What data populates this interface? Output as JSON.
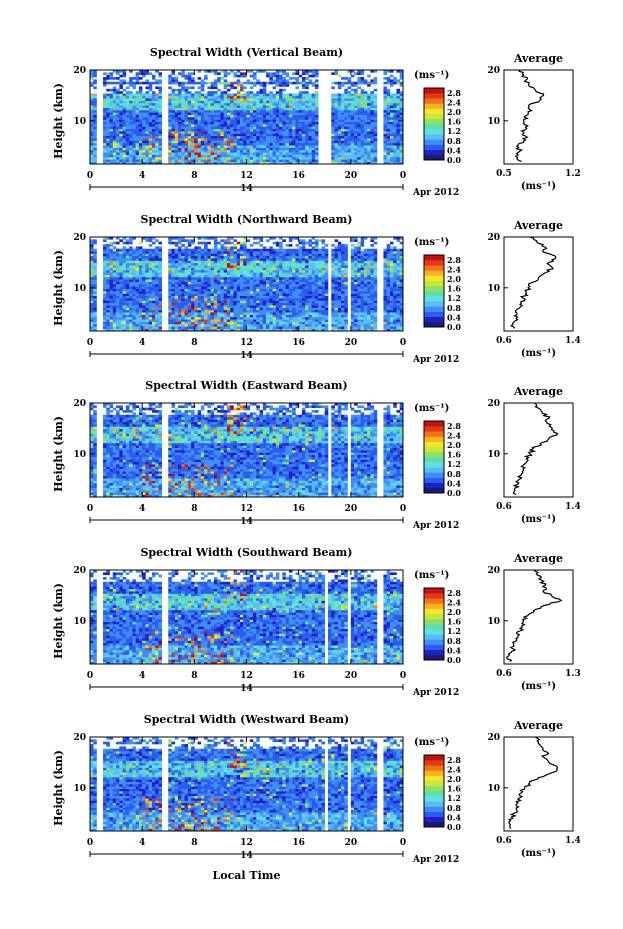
{
  "figure": {
    "xlabel": "Local Time",
    "date_label": "Apr 2012",
    "day_label": "14",
    "ylabel": "Height (km)",
    "colorbar_unit": "(ms⁻¹)",
    "profile_xlabel": "(ms⁻¹)",
    "profile_title": "Average"
  },
  "chart_data": [
    {
      "type": "heatmap",
      "title": "Spectral Width (Vertical Beam)",
      "x_ticks": [
        "0",
        "4",
        "8",
        "12",
        "16",
        "20",
        "0"
      ],
      "y_ticks": [
        "10",
        "20"
      ],
      "xlim": [
        0,
        24
      ],
      "ylim": [
        1.5,
        20
      ],
      "colorbar_ticks": [
        "0.0",
        "0.4",
        "0.8",
        "1.2",
        "1.6",
        "2.0",
        "2.4",
        "2.8"
      ],
      "colorbar_range": [
        0,
        3.0
      ],
      "gaps_hours": [
        [
          0.6,
          0.9
        ],
        [
          5.5,
          5.9
        ],
        [
          17.6,
          18.4
        ],
        [
          21.2,
          21.3
        ],
        [
          21.9,
          22.6
        ]
      ],
      "profile": {
        "title": "Average",
        "x_ticks": [
          "0.5",
          "1.2"
        ],
        "xlim": [
          0.5,
          1.2
        ],
        "heights": [
          2,
          3,
          4,
          5,
          6,
          7,
          8,
          9,
          10,
          11,
          12,
          13,
          14,
          15,
          16,
          17,
          18,
          19,
          20
        ],
        "values": [
          0.68,
          0.62,
          0.66,
          0.63,
          0.7,
          0.72,
          0.68,
          0.74,
          0.7,
          0.72,
          0.78,
          0.75,
          0.86,
          0.9,
          0.82,
          0.75,
          0.72,
          0.7,
          0.66
        ]
      }
    },
    {
      "type": "heatmap",
      "title": "Spectral Width (Northward Beam)",
      "x_ticks": [
        "0",
        "4",
        "8",
        "12",
        "16",
        "20",
        "0"
      ],
      "y_ticks": [
        "10",
        "20"
      ],
      "xlim": [
        0,
        24
      ],
      "ylim": [
        1.5,
        20
      ],
      "colorbar_ticks": [
        "0.0",
        "0.4",
        "0.8",
        "1.2",
        "1.6",
        "2.0",
        "2.4",
        "2.8"
      ],
      "colorbar_range": [
        0,
        3.0
      ],
      "gaps_hours": [
        [
          0.6,
          0.9
        ],
        [
          5.5,
          5.9
        ],
        [
          18.2,
          18.5
        ],
        [
          19.8,
          20.0
        ],
        [
          21.2,
          21.3
        ],
        [
          21.9,
          22.6
        ]
      ],
      "profile": {
        "title": "Average",
        "x_ticks": [
          "0.6",
          "1.4"
        ],
        "xlim": [
          0.6,
          1.4
        ],
        "heights": [
          2,
          3,
          4,
          5,
          6,
          7,
          8,
          9,
          10,
          11,
          12,
          13,
          14,
          15,
          16,
          17,
          18,
          19,
          20
        ],
        "values": [
          0.72,
          0.7,
          0.74,
          0.75,
          0.78,
          0.8,
          0.82,
          0.86,
          0.88,
          0.92,
          1.0,
          1.08,
          1.16,
          1.12,
          1.2,
          1.06,
          1.08,
          0.98,
          0.9
        ]
      }
    },
    {
      "type": "heatmap",
      "title": "Spectral Width (Eastward Beam)",
      "x_ticks": [
        "0",
        "4",
        "8",
        "12",
        "16",
        "20",
        "0"
      ],
      "y_ticks": [
        "10",
        "20"
      ],
      "xlim": [
        0,
        24
      ],
      "ylim": [
        1.5,
        20
      ],
      "colorbar_ticks": [
        "0.0",
        "0.4",
        "0.8",
        "1.2",
        "1.6",
        "2.0",
        "2.4",
        "2.8"
      ],
      "colorbar_range": [
        0,
        3.0
      ],
      "gaps_hours": [
        [
          0.6,
          0.9
        ],
        [
          5.5,
          5.9
        ],
        [
          18.2,
          18.5
        ],
        [
          19.8,
          20.0
        ],
        [
          21.2,
          21.3
        ],
        [
          21.9,
          22.6
        ]
      ],
      "profile": {
        "title": "Average",
        "x_ticks": [
          "0.6",
          "1.4"
        ],
        "xlim": [
          0.6,
          1.4
        ],
        "heights": [
          2,
          3,
          4,
          5,
          6,
          7,
          8,
          9,
          10,
          11,
          12,
          13,
          14,
          15,
          16,
          17,
          18,
          19,
          20
        ],
        "values": [
          0.74,
          0.72,
          0.76,
          0.78,
          0.8,
          0.82,
          0.84,
          0.86,
          0.9,
          0.94,
          1.02,
          1.12,
          1.22,
          1.16,
          1.1,
          1.12,
          1.04,
          1.0,
          0.96
        ]
      }
    },
    {
      "type": "heatmap",
      "title": "Spectral Width (Southward Beam)",
      "x_ticks": [
        "0",
        "4",
        "8",
        "12",
        "16",
        "20",
        "0"
      ],
      "y_ticks": [
        "10",
        "20"
      ],
      "xlim": [
        0,
        24
      ],
      "ylim": [
        1.5,
        20
      ],
      "colorbar_ticks": [
        "0.0",
        "0.4",
        "0.8",
        "1.2",
        "1.6",
        "2.0",
        "2.4",
        "2.8"
      ],
      "colorbar_range": [
        0,
        3.0
      ],
      "gaps_hours": [
        [
          0.6,
          0.9
        ],
        [
          5.5,
          5.9
        ],
        [
          17.9,
          18.2
        ],
        [
          19.8,
          20.0
        ],
        [
          21.2,
          21.3
        ],
        [
          21.9,
          22.6
        ]
      ],
      "profile": {
        "title": "Average",
        "x_ticks": [
          "0.6",
          "1.3"
        ],
        "xlim": [
          0.6,
          1.3
        ],
        "heights": [
          2,
          3,
          4,
          5,
          6,
          7,
          8,
          9,
          10,
          11,
          12,
          13,
          14,
          15,
          16,
          17,
          18,
          19,
          20
        ],
        "values": [
          0.66,
          0.64,
          0.68,
          0.7,
          0.72,
          0.74,
          0.76,
          0.78,
          0.8,
          0.84,
          0.9,
          1.0,
          1.18,
          1.08,
          1.0,
          1.02,
          0.98,
          0.94,
          0.9
        ]
      }
    },
    {
      "type": "heatmap",
      "title": "Spectral Width (Westward Beam)",
      "x_ticks": [
        "0",
        "4",
        "8",
        "12",
        "16",
        "20",
        "0"
      ],
      "y_ticks": [
        "10",
        "20"
      ],
      "xlim": [
        0,
        24
      ],
      "ylim": [
        1.5,
        20
      ],
      "colorbar_ticks": [
        "0.0",
        "0.4",
        "0.8",
        "1.2",
        "1.6",
        "2.0",
        "2.4",
        "2.8"
      ],
      "colorbar_range": [
        0,
        3.0
      ],
      "gaps_hours": [
        [
          0.6,
          0.9
        ],
        [
          5.5,
          5.9
        ],
        [
          17.9,
          18.2
        ],
        [
          19.8,
          20.0
        ],
        [
          21.2,
          21.3
        ],
        [
          21.9,
          22.6
        ]
      ],
      "profile": {
        "title": "Average",
        "x_ticks": [
          "0.6",
          "1.4"
        ],
        "xlim": [
          0.6,
          1.4
        ],
        "heights": [
          2,
          3,
          4,
          5,
          6,
          7,
          8,
          9,
          10,
          11,
          12,
          13,
          14,
          15,
          16,
          17,
          18,
          19,
          20
        ],
        "values": [
          0.68,
          0.66,
          0.7,
          0.72,
          0.74,
          0.76,
          0.78,
          0.8,
          0.84,
          0.9,
          1.0,
          1.16,
          1.22,
          1.12,
          1.06,
          1.1,
          1.04,
          1.0,
          0.96
        ]
      }
    }
  ]
}
